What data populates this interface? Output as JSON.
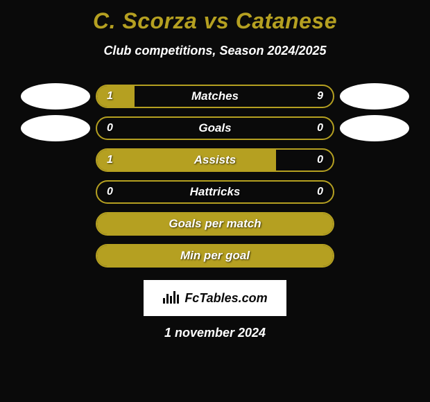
{
  "title": "C. Scorza vs Catanese",
  "subtitle": "Club competitions, Season 2024/2025",
  "date": "1 november 2024",
  "branding": {
    "text": "FcTables.com"
  },
  "colors": {
    "background": "#0a0a0a",
    "accent": "#b5a021",
    "text": "#ffffff",
    "logo_bg": "#ffffff"
  },
  "bar": {
    "track_width": 344,
    "track_height": 34,
    "border_radius": 17
  },
  "rows": [
    {
      "label": "Matches",
      "left": "1",
      "right": "9",
      "left_pct": 16,
      "right_pct": 0,
      "show_logos": true,
      "show_vals": true
    },
    {
      "label": "Goals",
      "left": "0",
      "right": "0",
      "left_pct": 0,
      "right_pct": 0,
      "show_logos": true,
      "show_vals": true
    },
    {
      "label": "Assists",
      "left": "1",
      "right": "0",
      "left_pct": 76,
      "right_pct": 0,
      "show_logos": false,
      "show_vals": true
    },
    {
      "label": "Hattricks",
      "left": "0",
      "right": "0",
      "left_pct": 0,
      "right_pct": 0,
      "show_logos": false,
      "show_vals": true
    },
    {
      "label": "Goals per match",
      "left": "",
      "right": "",
      "left_pct": 100,
      "right_pct": 0,
      "show_logos": false,
      "show_vals": false
    },
    {
      "label": "Min per goal",
      "left": "",
      "right": "",
      "left_pct": 100,
      "right_pct": 0,
      "show_logos": false,
      "show_vals": false
    }
  ]
}
